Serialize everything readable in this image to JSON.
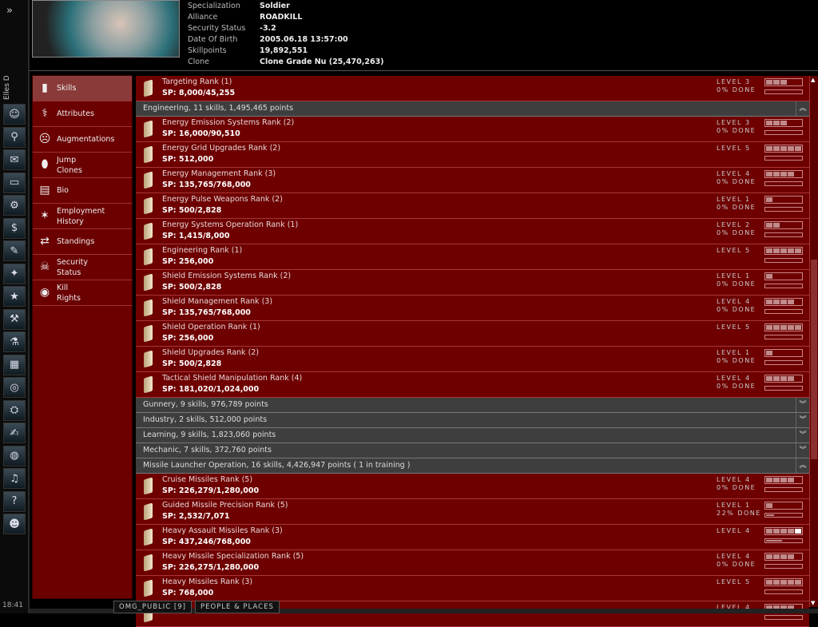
{
  "pilot_name": "Elles D",
  "clock": "18:41",
  "neocom": [
    "expand-icon",
    "character-sheet-icon",
    "people-places-icon",
    "mail-icon",
    "notepad-icon",
    "assets-icon",
    "market-icon",
    "contracts-icon",
    "map-icon",
    "corporation-icon",
    "industry-icon",
    "science-icon",
    "wallet-icon",
    "help-icon",
    "fitting-icon",
    "journal-icon",
    "browser-icon",
    "audio-icon",
    "info-help-icon",
    "portrait-icon"
  ],
  "header": [
    {
      "label": "Specialization",
      "value": "Soldier"
    },
    {
      "label": "Alliance",
      "value": "ROADKILL"
    },
    {
      "label": "Security Status",
      "value": "-3.2"
    },
    {
      "label": "Date Of Birth",
      "value": "2005.06.18 13:57:00"
    },
    {
      "label": "Skillpoints",
      "value": "19,892,551"
    },
    {
      "label": "Clone",
      "value": "Clone Grade Nu (25,470,263)"
    }
  ],
  "menu": [
    {
      "label": "Skills",
      "icon": "skill-book-icon",
      "selected": true
    },
    {
      "label": "Attributes",
      "icon": "dna-icon"
    },
    {
      "label": "Augmentations",
      "icon": "implant-head-icon"
    },
    {
      "label": "Jump\nClones",
      "icon": "clone-pod-icon"
    },
    {
      "label": "Bio",
      "icon": "bio-document-icon"
    },
    {
      "label": "Employment\nHistory",
      "icon": "employment-stars-icon"
    },
    {
      "label": "Standings",
      "icon": "standings-icon"
    },
    {
      "label": "Security\nStatus",
      "icon": "skull-icon"
    },
    {
      "label": "Kill\nRights",
      "icon": "target-icon"
    }
  ],
  "list": [
    {
      "type": "skill",
      "name": "Targeting Rank (1)",
      "sp": "SP: 8,000/45,255",
      "level": 3,
      "level_text": "LEVEL 3",
      "done": "0% DONE",
      "progress": 0
    },
    {
      "type": "group",
      "label": "Engineering, 11 skills, 1,495,465 points",
      "expanded": true
    },
    {
      "type": "skill",
      "name": "Energy Emission Systems Rank (2)",
      "sp": "SP: 16,000/90,510",
      "level": 3,
      "level_text": "LEVEL 3",
      "done": "0% DONE",
      "progress": 0
    },
    {
      "type": "skill",
      "name": "Energy Grid Upgrades Rank (2)",
      "sp": "SP: 512,000",
      "level": 5,
      "level_text": "LEVEL 5",
      "done": "",
      "progress": 0
    },
    {
      "type": "skill",
      "name": "Energy Management Rank (3)",
      "sp": "SP: 135,765/768,000",
      "level": 4,
      "level_text": "LEVEL 4",
      "done": "0% DONE",
      "progress": 0
    },
    {
      "type": "skill",
      "name": "Energy Pulse Weapons Rank (2)",
      "sp": "SP: 500/2,828",
      "level": 1,
      "level_text": "LEVEL 1",
      "done": "0% DONE",
      "progress": 0
    },
    {
      "type": "skill",
      "name": "Energy Systems Operation Rank (1)",
      "sp": "SP: 1,415/8,000",
      "level": 2,
      "level_text": "LEVEL 2",
      "done": "0% DONE",
      "progress": 0
    },
    {
      "type": "skill",
      "name": "Engineering Rank (1)",
      "sp": "SP: 256,000",
      "level": 5,
      "level_text": "LEVEL 5",
      "done": "",
      "progress": 0
    },
    {
      "type": "skill",
      "name": "Shield Emission Systems Rank (2)",
      "sp": "SP: 500/2,828",
      "level": 1,
      "level_text": "LEVEL 1",
      "done": "0% DONE",
      "progress": 0
    },
    {
      "type": "skill",
      "name": "Shield Management Rank (3)",
      "sp": "SP: 135,765/768,000",
      "level": 4,
      "level_text": "LEVEL 4",
      "done": "0% DONE",
      "progress": 0
    },
    {
      "type": "skill",
      "name": "Shield Operation Rank (1)",
      "sp": "SP: 256,000",
      "level": 5,
      "level_text": "LEVEL 5",
      "done": "",
      "progress": 0
    },
    {
      "type": "skill",
      "name": "Shield Upgrades Rank (2)",
      "sp": "SP: 500/2,828",
      "level": 1,
      "level_text": "LEVEL 1",
      "done": "0% DONE",
      "progress": 0
    },
    {
      "type": "skill",
      "name": "Tactical Shield Manipulation Rank (4)",
      "sp": "SP: 181,020/1,024,000",
      "level": 4,
      "level_text": "LEVEL 4",
      "done": "0% DONE",
      "progress": 0
    },
    {
      "type": "group",
      "label": "Gunnery, 9 skills, 976,789 points",
      "expanded": false
    },
    {
      "type": "group",
      "label": "Industry, 2 skills, 512,000 points",
      "expanded": false
    },
    {
      "type": "group",
      "label": "Learning, 9 skills, 1,823,060 points",
      "expanded": false
    },
    {
      "type": "group",
      "label": "Mechanic, 7 skills, 372,760 points",
      "expanded": false
    },
    {
      "type": "group",
      "label": "Missile Launcher Operation, 16 skills, 4,426,947 points ( 1 in training )",
      "expanded": true
    },
    {
      "type": "skill",
      "name": "Cruise Missiles Rank (5)",
      "sp": "SP: 226,279/1,280,000",
      "level": 4,
      "level_text": "LEVEL 4",
      "done": "0% DONE",
      "progress": 0
    },
    {
      "type": "skill",
      "name": "Guided Missile Precision Rank (5)",
      "sp": "SP: 2,532/7,071",
      "level": 1,
      "level_text": "LEVEL 1",
      "done": "22% DONE",
      "progress": 0.22
    },
    {
      "type": "skill",
      "name": "Heavy Assault Missiles Rank (3)",
      "sp": "SP: 437,246/768,000",
      "level": 4,
      "level_text": "LEVEL 4",
      "done": "",
      "progress": 0.45,
      "training": true
    },
    {
      "type": "skill",
      "name": "Heavy Missile Specialization Rank (5)",
      "sp": "SP: 226,275/1,280,000",
      "level": 4,
      "level_text": "LEVEL 4",
      "done": "0% DONE",
      "progress": 0
    },
    {
      "type": "skill",
      "name": "Heavy Missiles Rank (3)",
      "sp": "SP: 768,000",
      "level": 5,
      "level_text": "LEVEL 5",
      "done": "",
      "progress": 0
    },
    {
      "type": "skill",
      "name": "",
      "sp": "",
      "level": 4,
      "level_text": "LEVEL 4",
      "done": "",
      "progress": 0
    }
  ],
  "chat_tabs": [
    "OMG_PUBLIC [9]",
    "PEOPLE & PLACES"
  ],
  "colors": {
    "panel": "#6e0000",
    "group": "#3e3e3e",
    "level_fill": "#c08a8a"
  }
}
